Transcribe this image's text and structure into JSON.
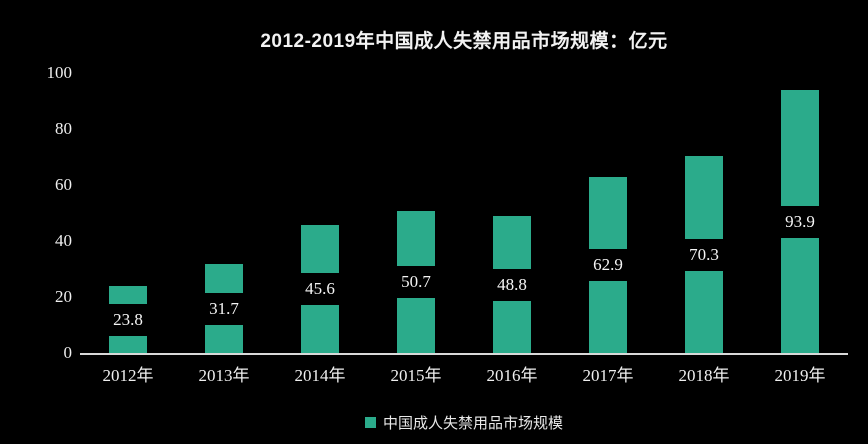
{
  "chart_data": {
    "type": "bar",
    "title": "2012-2019年中国成人失禁用品市场规模：亿元",
    "categories": [
      "2012年",
      "2013年",
      "2014年",
      "2015年",
      "2016年",
      "2017年",
      "2018年",
      "2019年"
    ],
    "series": [
      {
        "name": "中国成人失禁用品市场规模",
        "values": [
          23.8,
          31.7,
          45.6,
          50.7,
          48.8,
          62.9,
          70.3,
          93.9
        ]
      }
    ],
    "value_labels": [
      "23.8",
      "31.7",
      "45.6",
      "50.7",
      "48.8",
      "62.9",
      "70.3",
      "93.9"
    ],
    "ylabel": "",
    "xlabel": "",
    "ylim": [
      0,
      100
    ],
    "yticks": [
      0,
      20,
      40,
      60,
      80,
      100
    ],
    "grid": false,
    "legend_position": "bottom",
    "value_label_position": "inside-middle",
    "colors": {
      "background": "#000000",
      "bar": "#2bab8b",
      "text": "#efefef",
      "axis_line": "#d9d9d9"
    }
  }
}
